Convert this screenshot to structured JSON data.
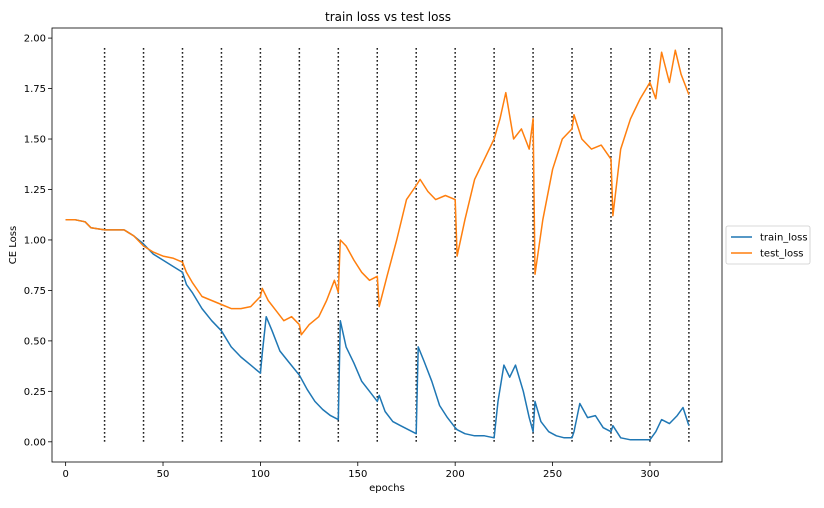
{
  "chart_data": {
    "type": "line",
    "title": "train loss vs test loss",
    "xlabel": "epochs",
    "ylabel": "CE Loss",
    "xlim": [
      -7,
      337
    ],
    "ylim": [
      -0.1,
      2.05
    ],
    "xticks": [
      0,
      50,
      100,
      150,
      200,
      250,
      300
    ],
    "yticks": [
      0.0,
      0.25,
      0.5,
      0.75,
      1.0,
      1.25,
      1.5,
      1.75,
      2.0
    ],
    "ytick_labels": [
      "0.00",
      "0.25",
      "0.50",
      "0.75",
      "1.00",
      "1.25",
      "1.50",
      "1.75",
      "2.00"
    ],
    "vlines": [
      20,
      40,
      60,
      80,
      100,
      120,
      140,
      160,
      180,
      200,
      220,
      240,
      260,
      280,
      300,
      320
    ],
    "vline_range": [
      0.0,
      1.95
    ],
    "legend_position": "center-right-outside",
    "grid": false,
    "colors": {
      "train_loss": "#1f77b4",
      "test_loss": "#ff7f0e",
      "vline": "#000000"
    },
    "series": [
      {
        "name": "train_loss",
        "x": [
          0,
          5,
          10,
          13,
          20,
          30,
          35,
          40,
          45,
          50,
          55,
          60,
          62,
          65,
          70,
          75,
          80,
          85,
          90,
          95,
          100,
          101,
          103,
          106,
          110,
          115,
          120,
          124,
          128,
          132,
          136,
          140,
          141,
          144,
          148,
          152,
          156,
          160,
          161,
          164,
          168,
          172,
          176,
          180,
          181,
          184,
          188,
          192,
          196,
          200,
          201,
          205,
          210,
          215,
          220,
          222,
          225,
          228,
          231,
          235,
          238,
          240,
          241,
          244,
          248,
          252,
          256,
          260,
          261,
          264,
          268,
          272,
          276,
          280,
          281,
          285,
          290,
          295,
          300,
          303,
          306,
          310,
          314,
          317,
          320
        ],
        "y": [
          1.1,
          1.1,
          1.09,
          1.06,
          1.05,
          1.05,
          1.02,
          0.98,
          0.93,
          0.9,
          0.87,
          0.84,
          0.78,
          0.74,
          0.66,
          0.6,
          0.55,
          0.47,
          0.42,
          0.38,
          0.34,
          0.44,
          0.62,
          0.55,
          0.45,
          0.39,
          0.33,
          0.26,
          0.2,
          0.16,
          0.13,
          0.11,
          0.6,
          0.47,
          0.39,
          0.3,
          0.25,
          0.2,
          0.23,
          0.15,
          0.1,
          0.08,
          0.06,
          0.04,
          0.47,
          0.4,
          0.3,
          0.18,
          0.12,
          0.07,
          0.06,
          0.04,
          0.03,
          0.03,
          0.02,
          0.2,
          0.38,
          0.32,
          0.38,
          0.25,
          0.12,
          0.05,
          0.2,
          0.1,
          0.05,
          0.03,
          0.02,
          0.02,
          0.05,
          0.19,
          0.12,
          0.13,
          0.07,
          0.05,
          0.08,
          0.02,
          0.01,
          0.01,
          0.01,
          0.05,
          0.11,
          0.09,
          0.13,
          0.17,
          0.08
        ]
      },
      {
        "name": "test_loss",
        "x": [
          0,
          5,
          10,
          13,
          20,
          30,
          35,
          40,
          45,
          50,
          55,
          60,
          62,
          65,
          70,
          75,
          80,
          85,
          90,
          95,
          100,
          101,
          104,
          108,
          112,
          116,
          120,
          121,
          125,
          130,
          134,
          138,
          140,
          141,
          144,
          148,
          152,
          156,
          160,
          161,
          165,
          170,
          175,
          180,
          182,
          186,
          190,
          195,
          200,
          201,
          205,
          210,
          215,
          220,
          223,
          226,
          230,
          234,
          238,
          240,
          241,
          245,
          250,
          255,
          260,
          261,
          265,
          270,
          275,
          280,
          281,
          285,
          290,
          295,
          300,
          303,
          306,
          310,
          313,
          316,
          320
        ],
        "y": [
          1.1,
          1.1,
          1.09,
          1.06,
          1.05,
          1.05,
          1.02,
          0.97,
          0.94,
          0.92,
          0.91,
          0.89,
          0.84,
          0.79,
          0.72,
          0.7,
          0.68,
          0.66,
          0.66,
          0.67,
          0.72,
          0.76,
          0.7,
          0.65,
          0.6,
          0.62,
          0.58,
          0.53,
          0.58,
          0.62,
          0.7,
          0.8,
          0.74,
          1.0,
          0.97,
          0.9,
          0.84,
          0.8,
          0.82,
          0.67,
          0.82,
          1.0,
          1.2,
          1.27,
          1.3,
          1.24,
          1.2,
          1.22,
          1.2,
          0.92,
          1.1,
          1.3,
          1.4,
          1.5,
          1.6,
          1.73,
          1.5,
          1.55,
          1.45,
          1.6,
          0.83,
          1.1,
          1.35,
          1.5,
          1.55,
          1.62,
          1.5,
          1.45,
          1.47,
          1.4,
          1.12,
          1.45,
          1.6,
          1.7,
          1.78,
          1.7,
          1.93,
          1.78,
          1.94,
          1.82,
          1.72
        ]
      }
    ]
  }
}
